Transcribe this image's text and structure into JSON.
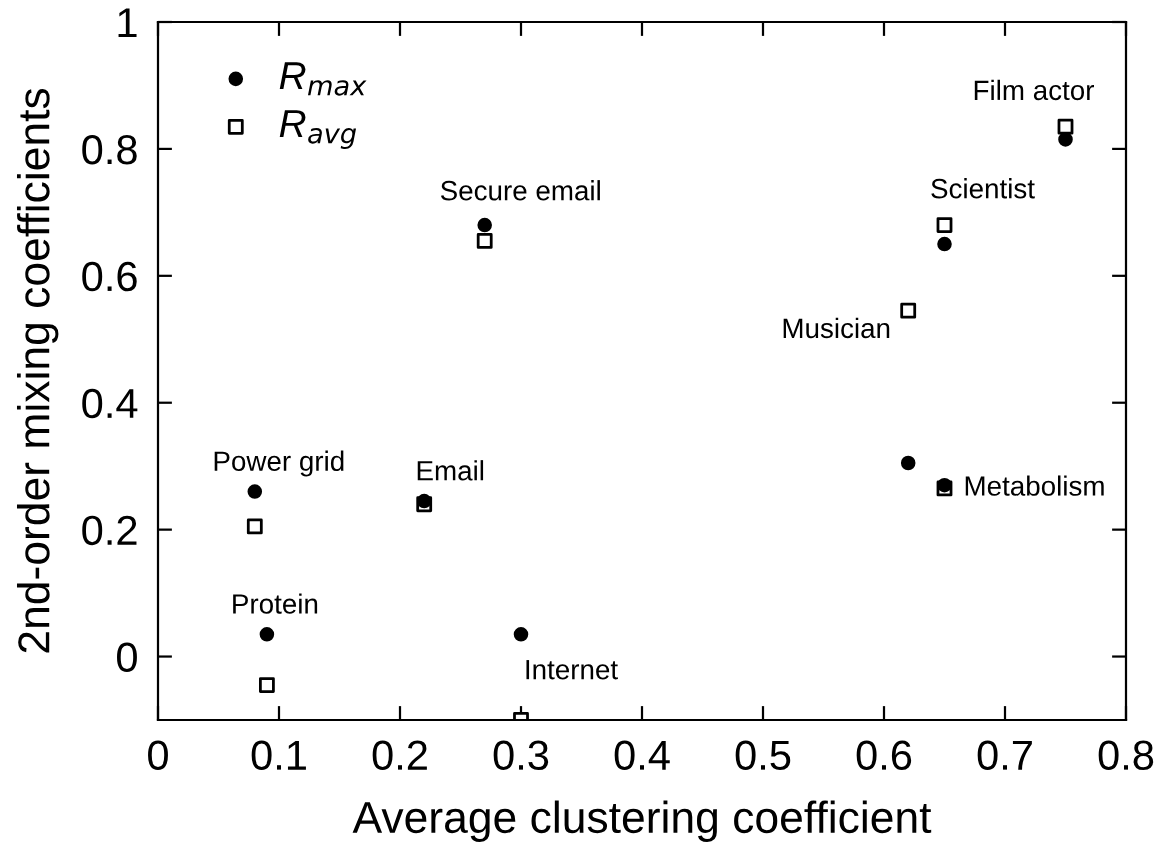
{
  "chart_data": {
    "type": "scatter",
    "xlabel": "Average clustering coefficient",
    "ylabel": "2nd-order mixing coefficients",
    "xlim": [
      0,
      0.8
    ],
    "xticks": [
      0,
      0.1,
      0.2,
      0.3,
      0.4,
      0.5,
      0.6,
      0.7,
      0.8
    ],
    "ylim": [
      -0.1,
      1
    ],
    "yticks": [
      0,
      0.2,
      0.4,
      0.6,
      0.8,
      1
    ],
    "grid": false,
    "legend": "top left",
    "series": [
      {
        "name": "R$_{max}$",
        "color": "#000000",
        "marker": "circle",
        "x": [
          0.08,
          0.09,
          0.22,
          0.27,
          0.3,
          0.62,
          0.65,
          0.65,
          0.75
        ],
        "values": [
          0.26,
          0.035,
          0.245,
          0.68,
          0.035,
          0.305,
          0.27,
          0.65,
          0.815
        ]
      },
      {
        "name": "R$_{avg}$",
        "color": "#000000",
        "marker": "square",
        "x": [
          0.08,
          0.09,
          0.22,
          0.27,
          0.3,
          0.62,
          0.65,
          0.65,
          0.75
        ],
        "values": [
          0.205,
          -0.045,
          0.24,
          0.655,
          -0.1,
          0.545,
          0.265,
          0.68,
          0.835
        ]
      }
    ],
    "annotations": [
      {
        "text": "Power grid",
        "x": 0.08,
        "y": 0.26
      },
      {
        "text": "Protein",
        "x": 0.09,
        "y": 0.035
      },
      {
        "text": "Email",
        "x": 0.22,
        "y": 0.245
      },
      {
        "text": "Secure email",
        "x": 0.27,
        "y": 0.68
      },
      {
        "text": "Internet",
        "x": 0.3,
        "y": -0.1
      },
      {
        "text": "Musician",
        "x": 0.62,
        "y": 0.545
      },
      {
        "text": "Metabolism",
        "x": 0.65,
        "y": 0.265
      },
      {
        "text": "Scientist",
        "x": 0.65,
        "y": 0.68
      },
      {
        "text": "Film actor",
        "x": 0.75,
        "y": 0.835
      }
    ]
  }
}
